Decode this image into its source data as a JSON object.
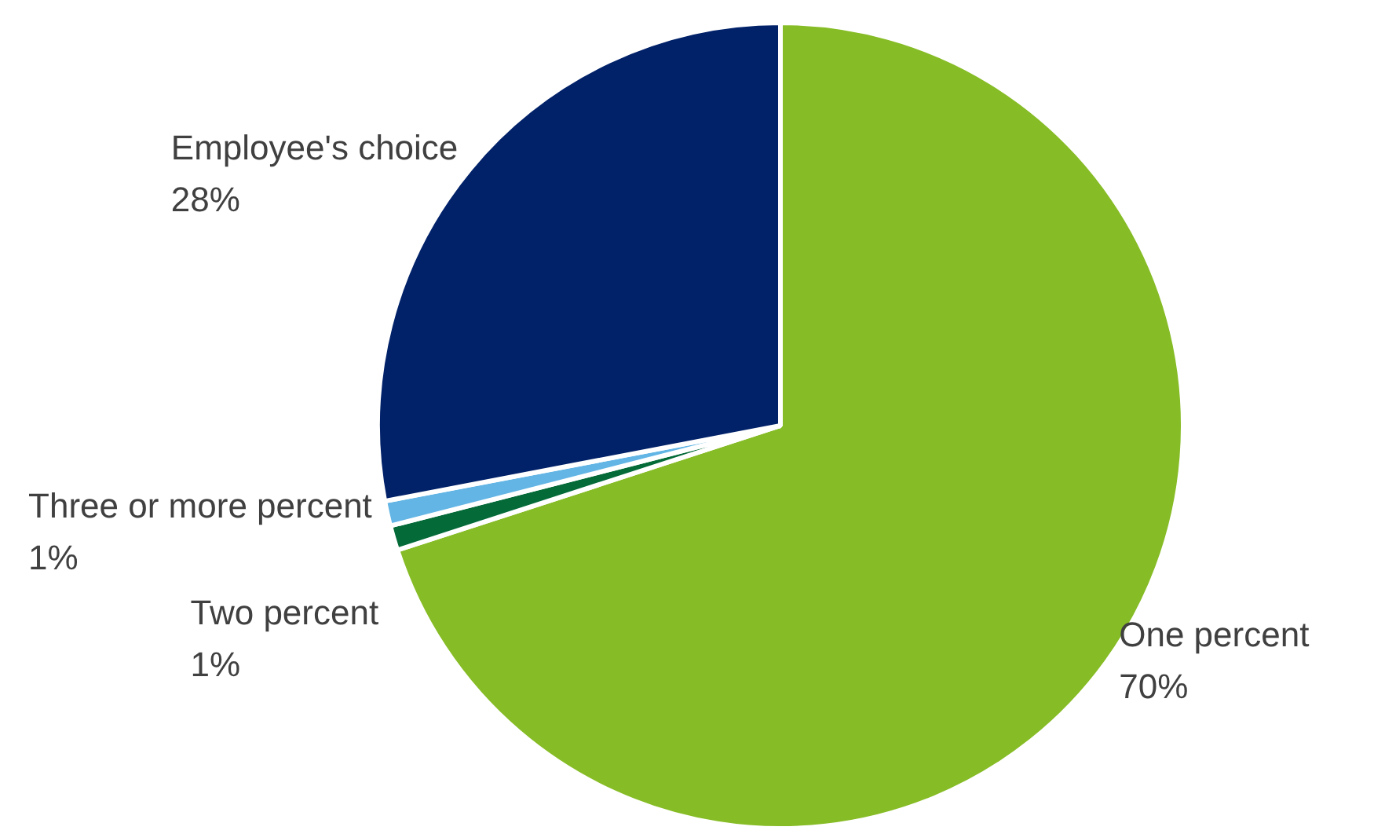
{
  "chart_data": {
    "type": "pie",
    "categories": [
      "One percent",
      "Two percent",
      "Three or more percent",
      "Employee's choice"
    ],
    "values": [
      70,
      1,
      1,
      28
    ],
    "colors": [
      "#86bc25",
      "#046a38",
      "#62b5e5",
      "#012169"
    ],
    "value_labels": [
      "70%",
      "1%",
      "1%",
      "28%"
    ],
    "legend": false
  }
}
